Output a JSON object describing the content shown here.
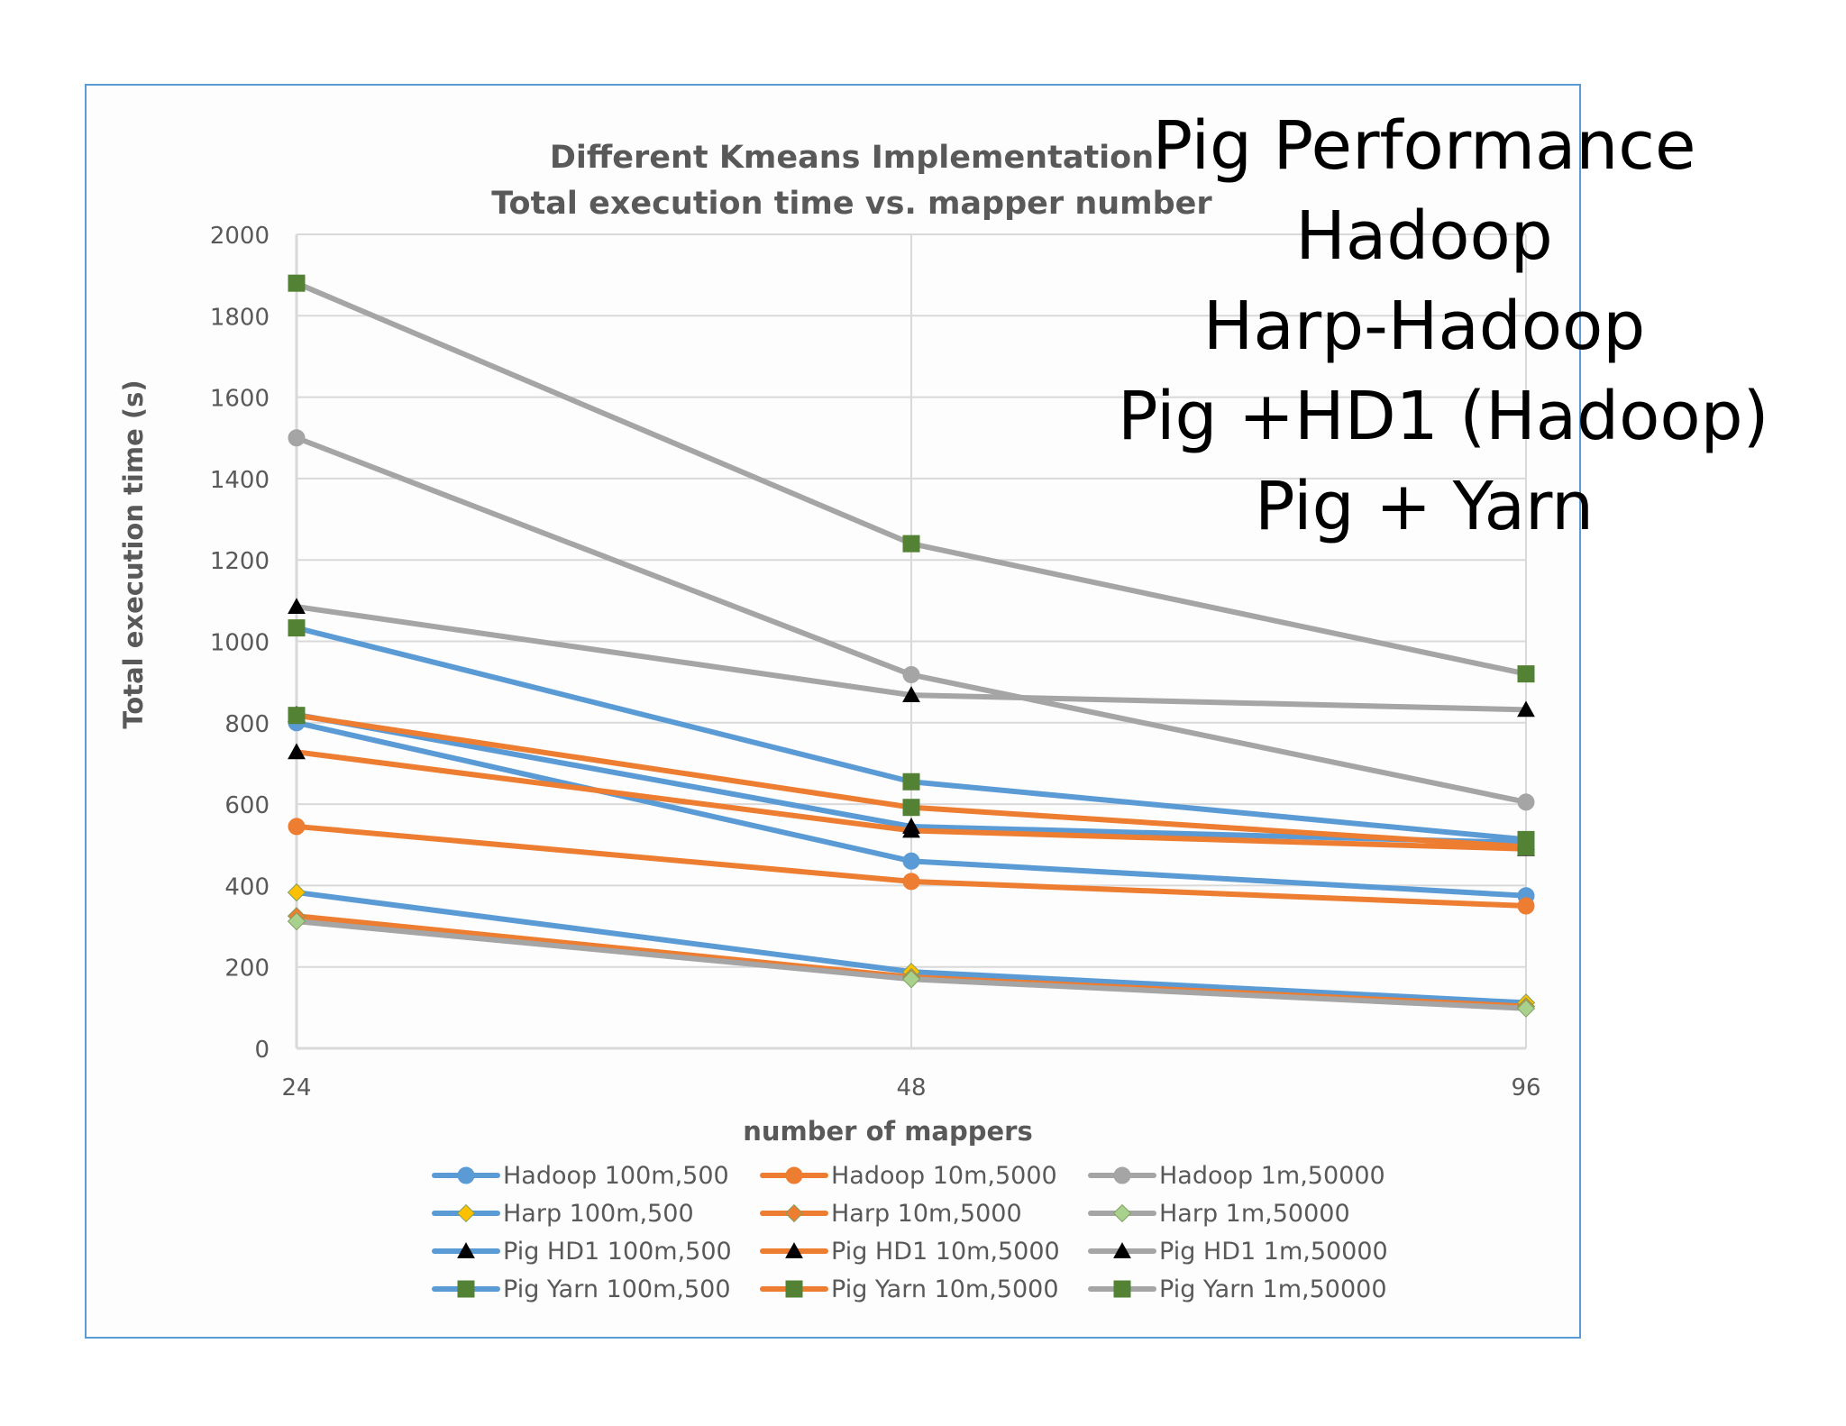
{
  "slide": {
    "title_lines": [
      "Pig Performance",
      "Hadoop",
      "Harp-Hadoop",
      "Pig +HD1 (Hadoop)",
      "Pig + Yarn"
    ]
  },
  "colors": {
    "blue": "#5b9bd5",
    "orange": "#ed7d31",
    "gray": "#a5a5a5",
    "yellow_marker": "#ffc000",
    "green_marker": "#548235",
    "light_green_marker": "#a9d18e",
    "black_marker": "#000000",
    "frame_border": "#5b9bd5"
  },
  "chart_data": {
    "type": "line",
    "title": "Different Kmeans Implementation\nTotal execution time vs. mapper number",
    "title_lines": [
      "Different Kmeans Implementation",
      "Total execution time vs. mapper number"
    ],
    "xlabel": "number of mappers",
    "ylabel": "Total execution time  (s)",
    "categories": [
      "24",
      "48",
      "96"
    ],
    "ylim": [
      0,
      2000
    ],
    "yticks": [
      0,
      200,
      400,
      600,
      800,
      1000,
      1200,
      1400,
      1600,
      1800,
      2000
    ],
    "grid": true,
    "legend_position": "bottom",
    "series": [
      {
        "name": "Hadoop 100m,500",
        "color": "#5b9bd5",
        "marker": "circle",
        "marker_color": "#5b9bd5",
        "values": [
          800,
          460,
          375
        ]
      },
      {
        "name": "Hadoop 10m,5000",
        "color": "#ed7d31",
        "marker": "circle",
        "marker_color": "#ed7d31",
        "values": [
          545,
          410,
          350
        ]
      },
      {
        "name": "Hadoop 1m,50000",
        "color": "#a5a5a5",
        "marker": "circle",
        "marker_color": "#a5a5a5",
        "values": [
          1500,
          918,
          605
        ]
      },
      {
        "name": "Harp 100m,500",
        "color": "#5b9bd5",
        "marker": "diamond",
        "marker_color": "#ffc000",
        "values": [
          383,
          188,
          112
        ]
      },
      {
        "name": "Harp 10m,5000",
        "color": "#ed7d31",
        "marker": "diamond",
        "marker_color": "#ed7d31",
        "values": [
          325,
          175,
          103
        ]
      },
      {
        "name": "Harp 1m,50000",
        "color": "#a5a5a5",
        "marker": "diamond",
        "marker_color": "#a9d18e",
        "values": [
          312,
          170,
          98
        ]
      },
      {
        "name": "Pig HD1 100m,500",
        "color": "#5b9bd5",
        "marker": "triangle",
        "marker_color": "#000000",
        "values": [
          820,
          545,
          505
        ]
      },
      {
        "name": "Pig HD1 10m,5000",
        "color": "#ed7d31",
        "marker": "triangle",
        "marker_color": "#000000",
        "values": [
          728,
          535,
          490
        ]
      },
      {
        "name": "Pig HD1 1m,50000",
        "color": "#a5a5a5",
        "marker": "triangle",
        "marker_color": "#000000",
        "values": [
          1085,
          868,
          832
        ]
      },
      {
        "name": "Pig Yarn 100m,500",
        "color": "#5b9bd5",
        "marker": "square",
        "marker_color": "#548235",
        "values": [
          1033,
          655,
          513
        ]
      },
      {
        "name": "Pig Yarn 10m,5000",
        "color": "#ed7d31",
        "marker": "square",
        "marker_color": "#548235",
        "values": [
          818,
          592,
          495
        ]
      },
      {
        "name": "Pig Yarn 1m,50000",
        "color": "#a5a5a5",
        "marker": "square",
        "marker_color": "#548235",
        "values": [
          1880,
          1240,
          920
        ]
      }
    ]
  }
}
